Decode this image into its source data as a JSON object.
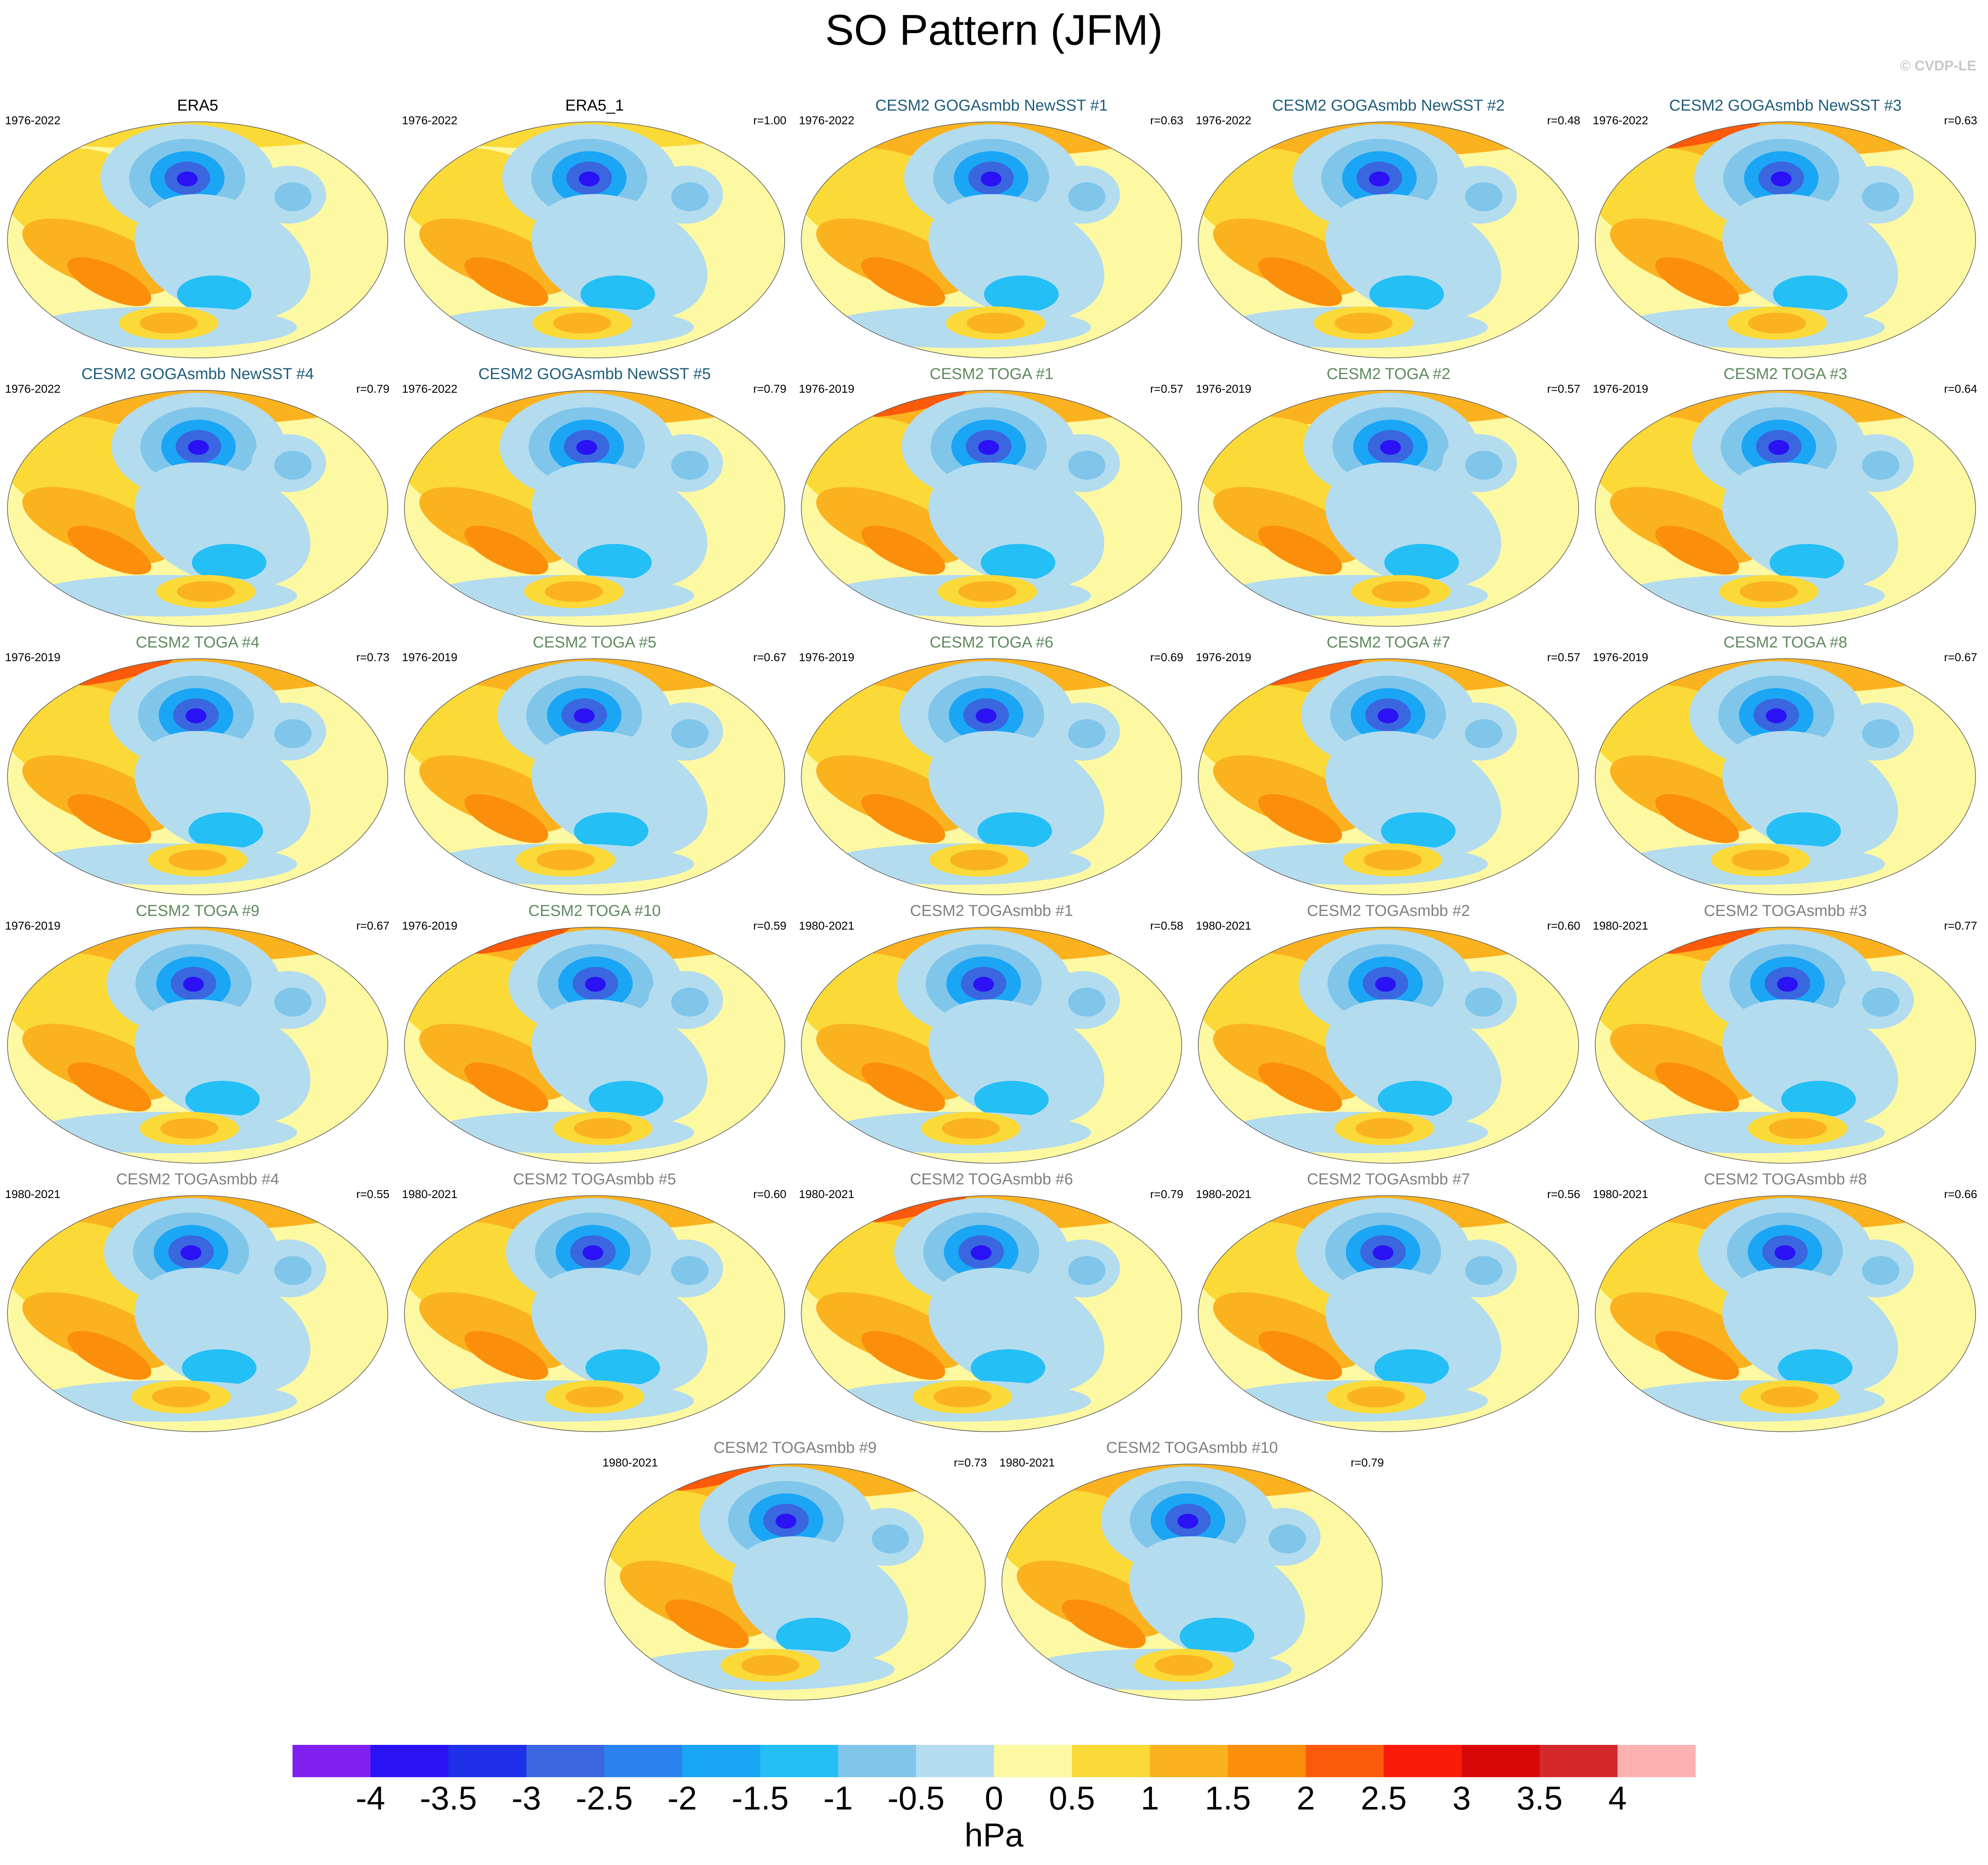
{
  "title": "SO Pattern (JFM)",
  "credit": "© CVDP-LE",
  "colors": {
    "era": "#000000",
    "goga": "#1e5d7a",
    "toga": "#5e8a5e",
    "togasmbb": "#808080"
  },
  "panels": [
    {
      "name": "ERA5",
      "years": "1976-2022",
      "r": "",
      "group": "era",
      "style": "era"
    },
    {
      "name": "ERA5_1",
      "years": "1976-2022",
      "r": "r=1.00",
      "group": "era",
      "style": "era"
    },
    {
      "name": "CESM2 GOGAsmbb NewSST #1",
      "years": "1976-2022",
      "r": "r=0.63",
      "group": "goga",
      "style": "goga"
    },
    {
      "name": "CESM2 GOGAsmbb NewSST #2",
      "years": "1976-2022",
      "r": "r=0.48",
      "group": "goga",
      "style": "goga"
    },
    {
      "name": "CESM2 GOGAsmbb NewSST #3",
      "years": "1976-2022",
      "r": "r=0.63",
      "group": "goga",
      "style": "goga"
    },
    {
      "name": "CESM2 GOGAsmbb NewSST #4",
      "years": "1976-2022",
      "r": "r=0.79",
      "group": "goga",
      "style": "goga"
    },
    {
      "name": "CESM2 GOGAsmbb NewSST #5",
      "years": "1976-2022",
      "r": "r=0.79",
      "group": "goga",
      "style": "goga"
    },
    {
      "name": "CESM2 TOGA #1",
      "years": "1976-2019",
      "r": "r=0.57",
      "group": "toga",
      "style": "toga"
    },
    {
      "name": "CESM2 TOGA #2",
      "years": "1976-2019",
      "r": "r=0.57",
      "group": "toga",
      "style": "toga"
    },
    {
      "name": "CESM2 TOGA #3",
      "years": "1976-2019",
      "r": "r=0.64",
      "group": "toga",
      "style": "toga"
    },
    {
      "name": "CESM2 TOGA #4",
      "years": "1976-2019",
      "r": "r=0.73",
      "group": "toga",
      "style": "toga"
    },
    {
      "name": "CESM2 TOGA #5",
      "years": "1976-2019",
      "r": "r=0.67",
      "group": "toga",
      "style": "toga"
    },
    {
      "name": "CESM2 TOGA #6",
      "years": "1976-2019",
      "r": "r=0.69",
      "group": "toga",
      "style": "toga"
    },
    {
      "name": "CESM2 TOGA #7",
      "years": "1976-2019",
      "r": "r=0.57",
      "group": "toga",
      "style": "toga"
    },
    {
      "name": "CESM2 TOGA #8",
      "years": "1976-2019",
      "r": "r=0.67",
      "group": "toga",
      "style": "toga"
    },
    {
      "name": "CESM2 TOGA #9",
      "years": "1976-2019",
      "r": "r=0.67",
      "group": "toga",
      "style": "toga"
    },
    {
      "name": "CESM2 TOGA #10",
      "years": "1976-2019",
      "r": "r=0.59",
      "group": "toga",
      "style": "toga"
    },
    {
      "name": "CESM2 TOGAsmbb #1",
      "years": "1980-2021",
      "r": "r=0.58",
      "group": "togasmbb",
      "style": "togasmbb"
    },
    {
      "name": "CESM2 TOGAsmbb #2",
      "years": "1980-2021",
      "r": "r=0.60",
      "group": "togasmbb",
      "style": "togasmbb"
    },
    {
      "name": "CESM2 TOGAsmbb #3",
      "years": "1980-2021",
      "r": "r=0.77",
      "group": "togasmbb",
      "style": "togasmbb"
    },
    {
      "name": "CESM2 TOGAsmbb #4",
      "years": "1980-2021",
      "r": "r=0.55",
      "group": "togasmbb",
      "style": "togasmbb"
    },
    {
      "name": "CESM2 TOGAsmbb #5",
      "years": "1980-2021",
      "r": "r=0.60",
      "group": "togasmbb",
      "style": "togasmbb"
    },
    {
      "name": "CESM2 TOGAsmbb #6",
      "years": "1980-2021",
      "r": "r=0.79",
      "group": "togasmbb",
      "style": "togasmbb"
    },
    {
      "name": "CESM2 TOGAsmbb #7",
      "years": "1980-2021",
      "r": "r=0.56",
      "group": "togasmbb",
      "style": "togasmbb"
    },
    {
      "name": "CESM2 TOGAsmbb #8",
      "years": "1980-2021",
      "r": "r=0.66",
      "group": "togasmbb",
      "style": "togasmbb"
    },
    {
      "name": "CESM2 TOGAsmbb #9",
      "years": "1980-2021",
      "r": "r=0.73",
      "group": "togasmbb",
      "style": "togasmbb"
    },
    {
      "name": "CESM2 TOGAsmbb #10",
      "years": "1980-2021",
      "r": "r=0.79",
      "group": "togasmbb",
      "style": "togasmbb"
    }
  ],
  "colorbar": {
    "units": "hPa",
    "ticks": [
      "-4",
      "-3.5",
      "-3",
      "-2.5",
      "-2",
      "-1.5",
      "-1",
      "-0.5",
      "0",
      "0.5",
      "1",
      "1.5",
      "2",
      "2.5",
      "3",
      "3.5",
      "4"
    ],
    "colors": [
      "#7f1ff0",
      "#2a12f5",
      "#1f30e8",
      "#3a66e0",
      "#2a82f0",
      "#1aa6f5",
      "#24bff5",
      "#80c6ea",
      "#b4dcef",
      "#fdf8a2",
      "#fbd936",
      "#fbb21f",
      "#fb8e0a",
      "#fb5a0a",
      "#fa1b0a",
      "#d90808",
      "#d4282a",
      "#fdb2b2"
    ]
  }
}
